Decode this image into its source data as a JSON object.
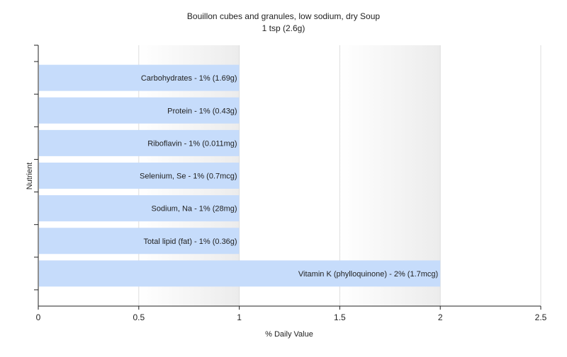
{
  "chart_data": {
    "type": "bar",
    "orientation": "horizontal",
    "title": "Bouillon cubes and granules, low sodium, dry Soup",
    "subtitle": "1 tsp (2.6g)",
    "xlabel": "% Daily Value",
    "ylabel": "Nutrient",
    "xlim": [
      0,
      2.5
    ],
    "xticks": [
      "0",
      "0.5",
      "1",
      "1.5",
      "2",
      "2.5"
    ],
    "grid": true,
    "bar_color": "#c6dcfb",
    "categories": [
      "Carbohydrates",
      "Protein",
      "Riboflavin",
      "Selenium, Se",
      "Sodium, Na",
      "Total lipid (fat)",
      "Vitamin K (phylloquinone)"
    ],
    "values": [
      1,
      1,
      1,
      1,
      1,
      1,
      2
    ],
    "labels": [
      "Carbohydrates - 1% (1.69g)",
      "Protein - 1% (0.43g)",
      "Riboflavin - 1% (0.011mg)",
      "Selenium, Se - 1% (0.7mcg)",
      "Sodium, Na - 1% (28mg)",
      "Total lipid (fat) - 1% (0.36g)",
      "Vitamin K (phylloquinone) - 2% (1.7mcg)"
    ]
  }
}
